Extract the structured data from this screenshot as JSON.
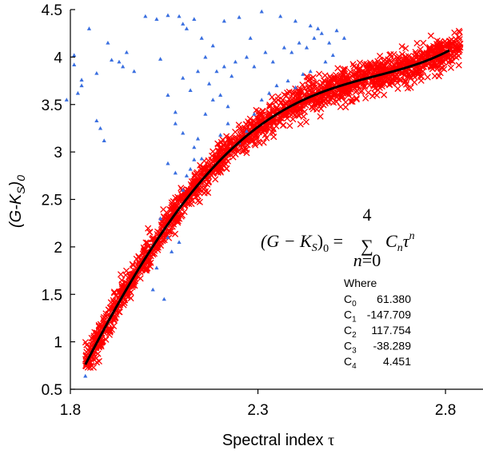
{
  "chart_data": {
    "type": "scatter",
    "xlabel_text": "Spectral index",
    "xlabel_symbol": "τ",
    "ylabel": "(G-K_S)_0",
    "xlim": [
      1.8,
      2.9
    ],
    "ylim": [
      0.5,
      4.5
    ],
    "x_ticks": [
      "1.8",
      "2.3",
      "2.8"
    ],
    "y_ticks": [
      "0.5",
      "1",
      "1.5",
      "2",
      "2.5",
      "3",
      "3.5",
      "4",
      "4.5"
    ],
    "grid": false,
    "equation": "(G − K_S)_0 = Σ_{n=0}^{4} C_n τ^n",
    "coefficients_label": "Where",
    "coefficients": [
      {
        "name": "C0",
        "value": "61.380"
      },
      {
        "name": "C1",
        "value": "-147.709"
      },
      {
        "name": "C2",
        "value": "117.754"
      },
      {
        "name": "C3",
        "value": "-38.289"
      },
      {
        "name": "C4",
        "value": "4.451"
      }
    ],
    "poly_coeffs": [
      61.38,
      -147.709,
      117.754,
      -38.289,
      4.451
    ],
    "fit_range": [
      1.84,
      2.81
    ],
    "series": [
      {
        "marker": "cross",
        "color": "#ff0000",
        "description_points": "dense band of crosses following the fit curve",
        "x_range": [
          1.84,
          2.84
        ],
        "approx_count": 1800
      },
      {
        "marker": "triangle",
        "color": "#3a6fe0",
        "points": [
          [
            1.79,
            3.55
          ],
          [
            1.81,
            4.02
          ],
          [
            1.81,
            3.92
          ],
          [
            1.83,
            3.76
          ],
          [
            1.83,
            3.7
          ],
          [
            1.82,
            3.62
          ],
          [
            1.84,
            0.64
          ],
          [
            1.85,
            4.3
          ],
          [
            1.87,
            3.83
          ],
          [
            1.87,
            3.33
          ],
          [
            1.88,
            3.25
          ],
          [
            1.89,
            3.12
          ],
          [
            1.9,
            4.15
          ],
          [
            1.91,
            3.97
          ],
          [
            1.93,
            3.95
          ],
          [
            1.94,
            3.9
          ],
          [
            1.95,
            4.05
          ],
          [
            1.97,
            3.85
          ],
          [
            2.0,
            4.43
          ],
          [
            2.03,
            4.4
          ],
          [
            2.06,
            4.44
          ],
          [
            2.09,
            4.43
          ],
          [
            2.1,
            4.35
          ],
          [
            2.11,
            4.3
          ],
          [
            2.13,
            4.4
          ],
          [
            2.15,
            4.2
          ],
          [
            2.21,
            4.38
          ],
          [
            2.25,
            4.42
          ],
          [
            2.28,
            4.2
          ],
          [
            2.31,
            4.48
          ],
          [
            2.36,
            4.43
          ],
          [
            2.4,
            4.38
          ],
          [
            2.44,
            4.33
          ],
          [
            2.46,
            4.3
          ],
          [
            2.04,
            3.98
          ],
          [
            2.06,
            3.6
          ],
          [
            2.08,
            3.42
          ],
          [
            2.08,
            3.3
          ],
          [
            2.1,
            3.2
          ],
          [
            2.13,
            3.05
          ],
          [
            2.14,
            3.14
          ],
          [
            2.15,
            2.93
          ],
          [
            2.06,
            2.88
          ],
          [
            2.08,
            2.78
          ],
          [
            2.1,
            2.6
          ],
          [
            2.11,
            2.75
          ],
          [
            2.12,
            2.82
          ],
          [
            2.13,
            2.92
          ],
          [
            2.17,
            3.72
          ],
          [
            2.19,
            3.85
          ],
          [
            2.21,
            3.9
          ],
          [
            2.23,
            3.8
          ],
          [
            2.24,
            3.95
          ],
          [
            2.27,
            4.0
          ],
          [
            2.29,
            3.9
          ],
          [
            2.32,
            4.05
          ],
          [
            2.34,
            3.95
          ],
          [
            2.37,
            4.1
          ],
          [
            2.39,
            4.05
          ],
          [
            2.41,
            4.15
          ],
          [
            2.43,
            4.1
          ],
          [
            2.45,
            4.2
          ],
          [
            2.47,
            4.25
          ],
          [
            2.49,
            4.15
          ],
          [
            2.51,
            4.28
          ],
          [
            2.53,
            4.2
          ],
          [
            2.16,
            3.4
          ],
          [
            2.18,
            3.55
          ],
          [
            2.2,
            3.6
          ],
          [
            2.22,
            3.48
          ],
          [
            2.12,
            3.65
          ],
          [
            2.1,
            3.78
          ],
          [
            2.14,
            3.85
          ],
          [
            2.16,
            4.0
          ],
          [
            2.18,
            4.12
          ],
          [
            2.02,
            1.55
          ],
          [
            2.03,
            1.78
          ],
          [
            2.05,
            1.45
          ],
          [
            2.06,
            2.1
          ],
          [
            2.07,
            1.95
          ],
          [
            2.09,
            2.05
          ],
          [
            2.04,
            2.3
          ],
          [
            2.2,
            3.18
          ],
          [
            2.22,
            3.3
          ],
          [
            2.25,
            3.1
          ],
          [
            2.27,
            3.22
          ],
          [
            2.29,
            3.4
          ],
          [
            2.31,
            3.55
          ],
          [
            2.33,
            3.62
          ],
          [
            2.35,
            3.7
          ],
          [
            2.38,
            3.75
          ],
          [
            2.4,
            3.68
          ],
          [
            2.42,
            3.82
          ],
          [
            2.44,
            3.85
          ],
          [
            2.48,
            3.95
          ],
          [
            2.5,
            4.02
          ]
        ]
      }
    ]
  }
}
